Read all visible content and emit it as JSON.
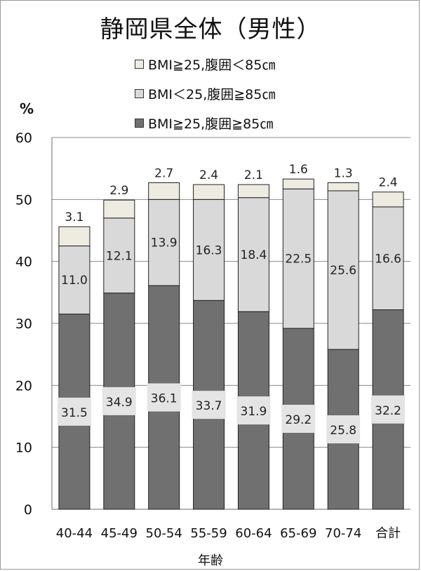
{
  "chart_data": {
    "type": "bar",
    "stacked": true,
    "title": "静岡県全体（男性）",
    "ylabel": "%",
    "xlabel": "年齢",
    "ylim": [
      0,
      60
    ],
    "yticks": [
      0,
      10,
      20,
      30,
      40,
      50,
      60
    ],
    "grid": true,
    "legend_position": "top",
    "categories": [
      "40-44",
      "45-49",
      "50-54",
      "55-59",
      "60-64",
      "65-69",
      "70-74",
      "合計"
    ],
    "series": [
      {
        "name": "BMI≧25,腹囲≧85㎝",
        "color": "#707070",
        "values": [
          31.5,
          34.9,
          36.1,
          33.7,
          31.9,
          29.2,
          25.8,
          32.2
        ]
      },
      {
        "name": "BMI＜25,腹囲≧85㎝",
        "color": "#d9d9d9",
        "values": [
          11.0,
          12.1,
          13.9,
          16.3,
          18.4,
          22.5,
          25.6,
          16.6
        ]
      },
      {
        "name": "BMI≧25,腹囲＜85㎝",
        "color": "#eeece1",
        "values": [
          3.1,
          2.9,
          2.7,
          2.4,
          2.1,
          1.6,
          1.3,
          2.4
        ]
      }
    ],
    "legend_order": [
      2,
      1,
      0
    ]
  }
}
